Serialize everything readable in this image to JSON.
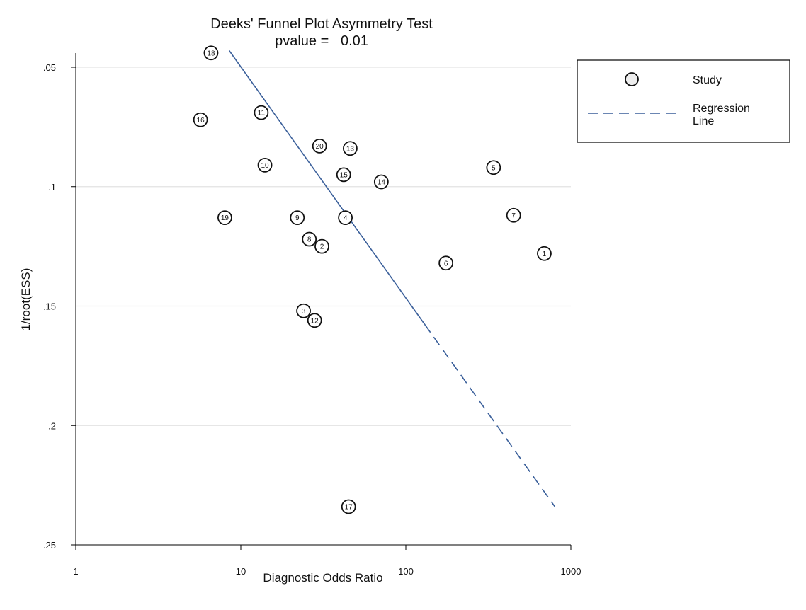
{
  "chart_data": {
    "type": "scatter",
    "title": "Deeks' Funnel Plot Asymmetry Test",
    "subtitle": "pvalue =   0.01",
    "xlabel": "Diagnostic Odds Ratio",
    "ylabel": "1/root(ESS)",
    "x_scale": "log",
    "xlim": [
      1,
      1000
    ],
    "ylim": [
      0.25,
      0.045
    ],
    "y_inverted": true,
    "x_ticks": [
      1,
      10,
      100,
      1000
    ],
    "x_tick_labels": [
      "1",
      "10",
      "100",
      "1000"
    ],
    "y_ticks": [
      0.05,
      0.1,
      0.15,
      0.2,
      0.25
    ],
    "y_tick_labels": [
      ".05",
      ".1",
      ".15",
      ".2",
      ".25"
    ],
    "grid": "horizontal",
    "legend_position": "top-right",
    "legend": [
      {
        "label": "Study",
        "marker": "circle"
      },
      {
        "label_lines": [
          "Regression",
          "Line"
        ],
        "marker": "dashed-line"
      }
    ],
    "series": [
      {
        "name": "Study",
        "points": [
          {
            "label": "1",
            "x": 690,
            "y": 0.128
          },
          {
            "label": "2",
            "x": 31,
            "y": 0.125
          },
          {
            "label": "3",
            "x": 24,
            "y": 0.152
          },
          {
            "label": "4",
            "x": 43,
            "y": 0.113
          },
          {
            "label": "5",
            "x": 340,
            "y": 0.092
          },
          {
            "label": "6",
            "x": 175,
            "y": 0.132
          },
          {
            "label": "7",
            "x": 450,
            "y": 0.112
          },
          {
            "label": "8",
            "x": 26,
            "y": 0.122
          },
          {
            "label": "9",
            "x": 22,
            "y": 0.113
          },
          {
            "label": "10",
            "x": 14,
            "y": 0.091
          },
          {
            "label": "11",
            "x": 13.3,
            "y": 0.069
          },
          {
            "label": "12",
            "x": 28,
            "y": 0.156
          },
          {
            "label": "13",
            "x": 46,
            "y": 0.084
          },
          {
            "label": "14",
            "x": 71,
            "y": 0.098
          },
          {
            "label": "15",
            "x": 42,
            "y": 0.095
          },
          {
            "label": "16",
            "x": 5.7,
            "y": 0.072
          },
          {
            "label": "17",
            "x": 45,
            "y": 0.234
          },
          {
            "label": "18",
            "x": 6.6,
            "y": 0.044
          },
          {
            "label": "19",
            "x": 8,
            "y": 0.113
          },
          {
            "label": "20",
            "x": 30,
            "y": 0.083
          }
        ]
      },
      {
        "name": "Regression Line",
        "style": "dashed",
        "color": "#3a5f9a",
        "start": {
          "x": 8.5,
          "y": 0.043
        },
        "end": {
          "x": 800,
          "y": 0.234
        },
        "solid_until_x": 130
      }
    ]
  }
}
